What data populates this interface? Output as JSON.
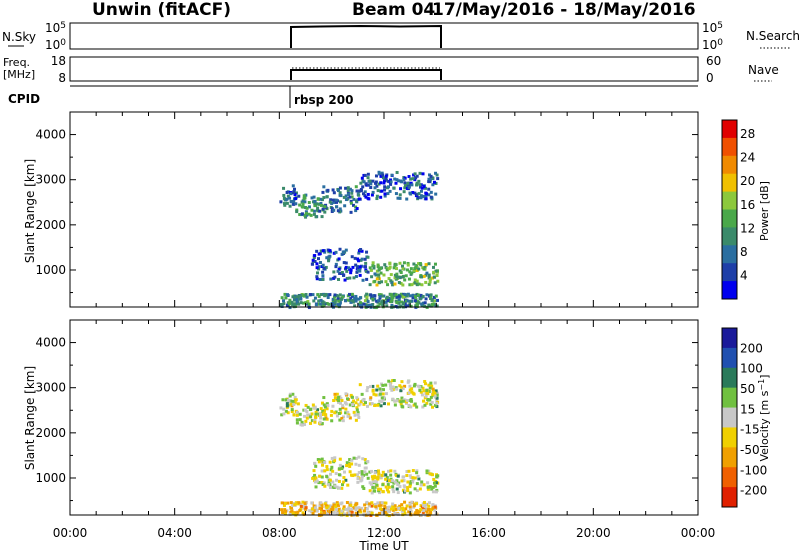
{
  "header": {
    "station": "Unwin (fitACF)",
    "beam": "Beam 04",
    "date_range": "17/May/2016 - 18/May/2016"
  },
  "nsky_panel": {
    "label": "N.Sky",
    "left_ticks": [
      "10^5",
      "10^0"
    ],
    "right_ticks": [
      "10^5",
      "10^0"
    ],
    "right_label": "N.Search"
  },
  "freq_panel": {
    "label_line1": "Freq.",
    "label_line2": "[MHz]",
    "left_ticks": [
      "18",
      "8"
    ],
    "right_ticks": [
      "60",
      "0"
    ],
    "right_label": "Nave"
  },
  "cpid": {
    "label": "CPID",
    "value": "rbsp 200"
  },
  "time_axis": {
    "label": "Time UT",
    "ticks": [
      "00:00",
      "04:00",
      "08:00",
      "12:00",
      "16:00",
      "20:00",
      "00:00"
    ]
  },
  "colors": {
    "frame": "#000000",
    "power_scale": [
      "#0000ee",
      "#1e3fa8",
      "#2a6ea0",
      "#3a8a6a",
      "#4aa84a",
      "#8cc83c",
      "#f0c000",
      "#f08a00",
      "#f05000",
      "#e00000"
    ],
    "velocity_scale": [
      "#1a1a9a",
      "#2050b0",
      "#2a7a5a",
      "#70c040",
      "#c8c8c8",
      "#f0d000",
      "#f0a000",
      "#f06000",
      "#e02000"
    ]
  },
  "chart_data": [
    {
      "type": "heatmap",
      "title": "Power",
      "xlabel": "Time UT",
      "ylabel": "Slant Range [km]",
      "xlim": [
        0,
        24
      ],
      "ylim": [
        180,
        4500
      ],
      "yticks": [
        "1000",
        "2000",
        "3000",
        "4000"
      ],
      "colorbar": {
        "label": "Power [dB]",
        "ticks": [
          "4",
          "8",
          "12",
          "16",
          "20",
          "24",
          "28"
        ],
        "range": [
          0,
          30
        ]
      },
      "scatter_bands": [
        {
          "t": [
            8.0,
            8.6
          ],
          "r": [
            2400,
            2900
          ],
          "value": 8
        },
        {
          "t": [
            8.6,
            9.6
          ],
          "r": [
            2200,
            2700
          ],
          "value": 10
        },
        {
          "t": [
            9.6,
            11.0
          ],
          "r": [
            2300,
            2900
          ],
          "value": 8
        },
        {
          "t": [
            11.0,
            14.0
          ],
          "r": [
            2600,
            3200
          ],
          "value": 6
        },
        {
          "t": [
            9.2,
            11.4
          ],
          "r": [
            800,
            1500
          ],
          "value": 6
        },
        {
          "t": [
            11.4,
            14.0
          ],
          "r": [
            700,
            1200
          ],
          "value": 14
        },
        {
          "t": [
            8.0,
            14.0
          ],
          "r": [
            200,
            500
          ],
          "value": 10
        }
      ]
    },
    {
      "type": "heatmap",
      "title": "Velocity",
      "xlabel": "Time UT",
      "ylabel": "Slant Range [km]",
      "xlim": [
        0,
        24
      ],
      "ylim": [
        180,
        4500
      ],
      "yticks": [
        "1000",
        "2000",
        "3000",
        "4000"
      ],
      "colorbar": {
        "label": "Velocity [m s^-1]",
        "ticks": [
          "200",
          "100",
          "50",
          "15",
          "-15",
          "-50",
          "-100",
          "-200"
        ],
        "range": [
          -250,
          250
        ]
      },
      "scatter_bands": [
        {
          "t": [
            8.0,
            8.6
          ],
          "r": [
            2400,
            2900
          ],
          "value": 0
        },
        {
          "t": [
            8.6,
            9.6
          ],
          "r": [
            2200,
            2700
          ],
          "value": 5
        },
        {
          "t": [
            9.6,
            11.0
          ],
          "r": [
            2300,
            2900
          ],
          "value": -10
        },
        {
          "t": [
            11.0,
            14.0
          ],
          "r": [
            2600,
            3200
          ],
          "value": 0
        },
        {
          "t": [
            9.2,
            11.4
          ],
          "r": [
            800,
            1500
          ],
          "value": 0
        },
        {
          "t": [
            11.4,
            14.0
          ],
          "r": [
            700,
            1200
          ],
          "value": 5
        },
        {
          "t": [
            8.0,
            14.0
          ],
          "r": [
            200,
            500
          ],
          "value": -60
        }
      ]
    },
    {
      "type": "line",
      "title": "N.Sky",
      "x": [
        8.0,
        14.0
      ],
      "y_level": "high",
      "xlim": [
        0,
        24
      ]
    },
    {
      "type": "line",
      "title": "Freq.",
      "x": [
        8.0,
        14.0
      ],
      "y_value_mhz": 11,
      "xlim": [
        0,
        24
      ]
    }
  ]
}
